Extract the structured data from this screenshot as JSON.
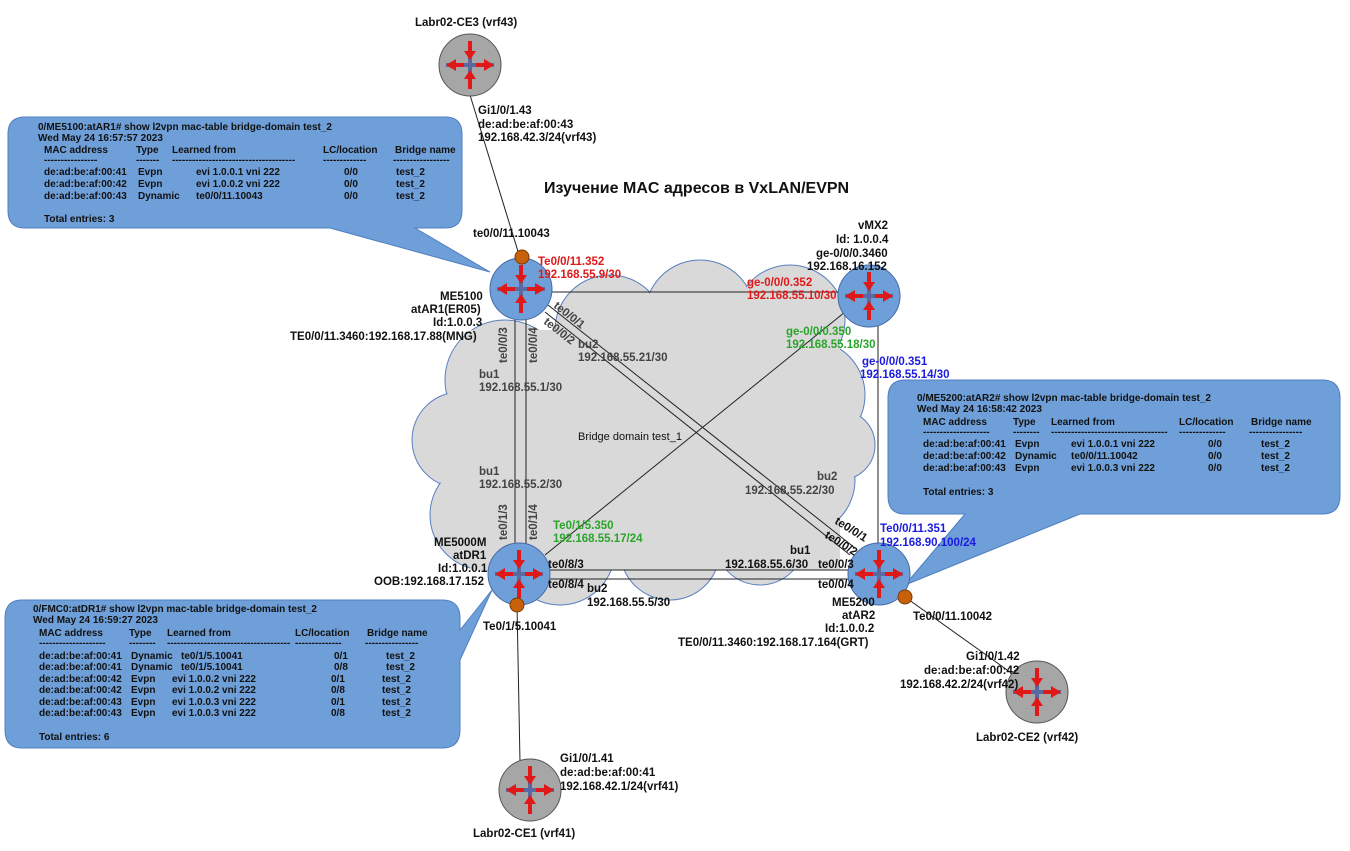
{
  "title": "Изучение MAC адресов в VxLAN/EVPN",
  "cloud_label": "Bridge domain test_1",
  "colors": {
    "router_blue": "#6f9fd8",
    "router_gray": "#a6a6a6",
    "callout_fill": "#6f9fd8",
    "cloud_fill": "#d9d9d9",
    "port_dot": "#c8620a",
    "red": "#e01818",
    "green": "#2aa52a",
    "blue": "#1a1ae0"
  },
  "nodes": {
    "ce3": {
      "name": "Labr02-CE3 (vrf43)",
      "port": "Gi1/0/1.43",
      "mac": "de:ad:be:af:00:43",
      "ip": "192.168.42.3/24(vrf43)"
    },
    "ar1": {
      "model": "ME5100",
      "name": "atAR1(ER05)",
      "id": "Id:1.0.0.3",
      "mgmt": "TE0/0/11.3460:192.168.17.88(MNG)",
      "access_port": "te0/0/11.10043",
      "red_port": "Te0/0/11.352",
      "red_ip": "192.168.55.9/30"
    },
    "vmx2": {
      "name": "vMX2",
      "id": "Id: 1.0.0.4",
      "port": "ge-0/0/0.3460",
      "ip": "192.168.16.152",
      "red_port": "ge-0/0/0.352",
      "red_ip": "192.168.55.10/30",
      "green_port": "ge-0/0/0.350",
      "green_ip": "192.168.55.18/30",
      "blue_port": "ge-0/0/0.351",
      "blue_ip": "192.168.55.14/30"
    },
    "dr1": {
      "model": "ME5000M",
      "name": "atDR1",
      "id": "Id:1.0.0.1",
      "mgmt": "OOB:192.168.17.152",
      "access_port": "Te0/1/5.10041",
      "green_port": "Te0/1/5.350",
      "green_ip": "192.168.55.17/24"
    },
    "ar2": {
      "model": "ME5200",
      "name": "atAR2",
      "id": "Id:1.0.0.2",
      "mgmt": "TE0/0/11.3460:192.168.17.164(GRT)",
      "access_port": "Te0/0/11.10042",
      "blue_port": "Te0/0/11.351",
      "blue_ip": "192.168.90.100/24"
    },
    "ce2": {
      "name": "Labr02-CE2 (vrf42)",
      "port": "Gi1/0/1.42",
      "mac": "de:ad:be:af:00:42",
      "ip": "192.168.42.2/24(vrf42)"
    },
    "ce1": {
      "name": "Labr02-CE1 (vrf41)",
      "port": "Gi1/0/1.41",
      "mac": "de:ad:be:af:00:41",
      "ip": "192.168.42.1/24(vrf41)"
    }
  },
  "links": {
    "ar1_te003": "te0/0/3",
    "ar1_te004": "te0/0/4",
    "ar1_te001": "te0/0/1",
    "ar1_te002": "te0/0/2",
    "bu1_top": "bu1",
    "bu1_top_ip": "192.168.55.1/30",
    "bu2_top": "bu2",
    "bu2_top_ip": "192.168.55.21/30",
    "bu1_left": "bu1",
    "bu1_left_ip": "192.168.55.2/30",
    "dr1_te013": "te0/1/3",
    "dr1_te014": "te0/1/4",
    "bu2_right": "bu2",
    "bu2_right_ip": "192.168.55.22/30",
    "ar2_te001": "te0/0/1",
    "ar2_te002": "te0/0/2",
    "bu1_bottom": "bu1",
    "bu1_bottom_ip": "192.168.55.6/30",
    "ar2_te003": "te0/0/3",
    "ar2_te004": "te0/0/4",
    "dr1_te083": "te0/8/3",
    "dr1_te084": "te0/8/4",
    "bu2_bottom": "bu2",
    "bu2_bottom_ip": "192.168.55.5/30"
  },
  "callouts": {
    "ar1": {
      "cmd": "0/ME5100:atAR1#  show l2vpn mac-table bridge-domain test_2",
      "date": "Wed May 24 16:57:57 2023",
      "headers": [
        "MAC address",
        "Type",
        "Learned from",
        "LC/location",
        "Bridge name"
      ],
      "dashes": [
        "----------------",
        "-------",
        "-------------------------------------",
        "-------------",
        "-----------------"
      ],
      "rows": [
        [
          "de:ad:be:af:00:41",
          "Evpn",
          "evi 1.0.0.1 vni 222",
          "0/0",
          "test_2"
        ],
        [
          "de:ad:be:af:00:42",
          "Evpn",
          "evi 1.0.0.2 vni 222",
          "0/0",
          "test_2"
        ],
        [
          "de:ad:be:af:00:43",
          "Dynamic",
          "te0/0/11.10043",
          "0/0",
          "test_2"
        ]
      ],
      "total": "Total entries: 3"
    },
    "ar2": {
      "cmd": "0/ME5200:atAR2# show l2vpn mac-table bridge-domain test_2",
      "date": "Wed May 24 16:58:42 2023",
      "headers": [
        "MAC address",
        "Type",
        "Learned from",
        "LC/location",
        "Bridge name"
      ],
      "dashes": [
        "--------------------",
        "--------",
        "-----------------------------------",
        "--------------",
        "----------------"
      ],
      "rows": [
        [
          "de:ad:be:af:00:41",
          "Evpn",
          "evi 1.0.0.1 vni 222",
          "0/0",
          "test_2"
        ],
        [
          "de:ad:be:af:00:42",
          "Dynamic",
          "te0/0/11.10042",
          "0/0",
          "test_2"
        ],
        [
          "de:ad:be:af:00:43",
          "Evpn",
          "evi 1.0.0.3 vni 222",
          "0/0",
          "test_2"
        ]
      ],
      "total": "Total entries: 3"
    },
    "dr1": {
      "cmd": "0/FMC0:atDR1# show l2vpn mac-table bridge-domain test_2",
      "date": "Wed May 24 16:59:27 2023",
      "headers": [
        "MAC address",
        "Type",
        "Learned from",
        "LC/location",
        "Bridge name"
      ],
      "dashes": [
        "--------------------",
        "--------",
        "-------------------------------------",
        "--------------",
        "----------------"
      ],
      "rows": [
        [
          "de:ad:be:af:00:41",
          "Dynamic",
          "te0/1/5.10041",
          "0/1",
          "test_2"
        ],
        [
          "de:ad:be:af:00:41",
          "Dynamic",
          "te0/1/5.10041",
          "0/8",
          "test_2"
        ],
        [
          "de:ad:be:af:00:42",
          "Evpn",
          "evi 1.0.0.2 vni 222",
          "0/1",
          "test_2"
        ],
        [
          "de:ad:be:af:00:42",
          "Evpn",
          "evi 1.0.0.2 vni 222",
          "0/8",
          "test_2"
        ],
        [
          "de:ad:be:af:00:43",
          "Evpn",
          "evi 1.0.0.3 vni 222",
          "0/1",
          "test_2"
        ],
        [
          "de:ad:be:af:00:43",
          "Evpn",
          "evi 1.0.0.3 vni 222",
          "0/8",
          "test_2"
        ]
      ],
      "total": "Total entries: 6"
    }
  }
}
